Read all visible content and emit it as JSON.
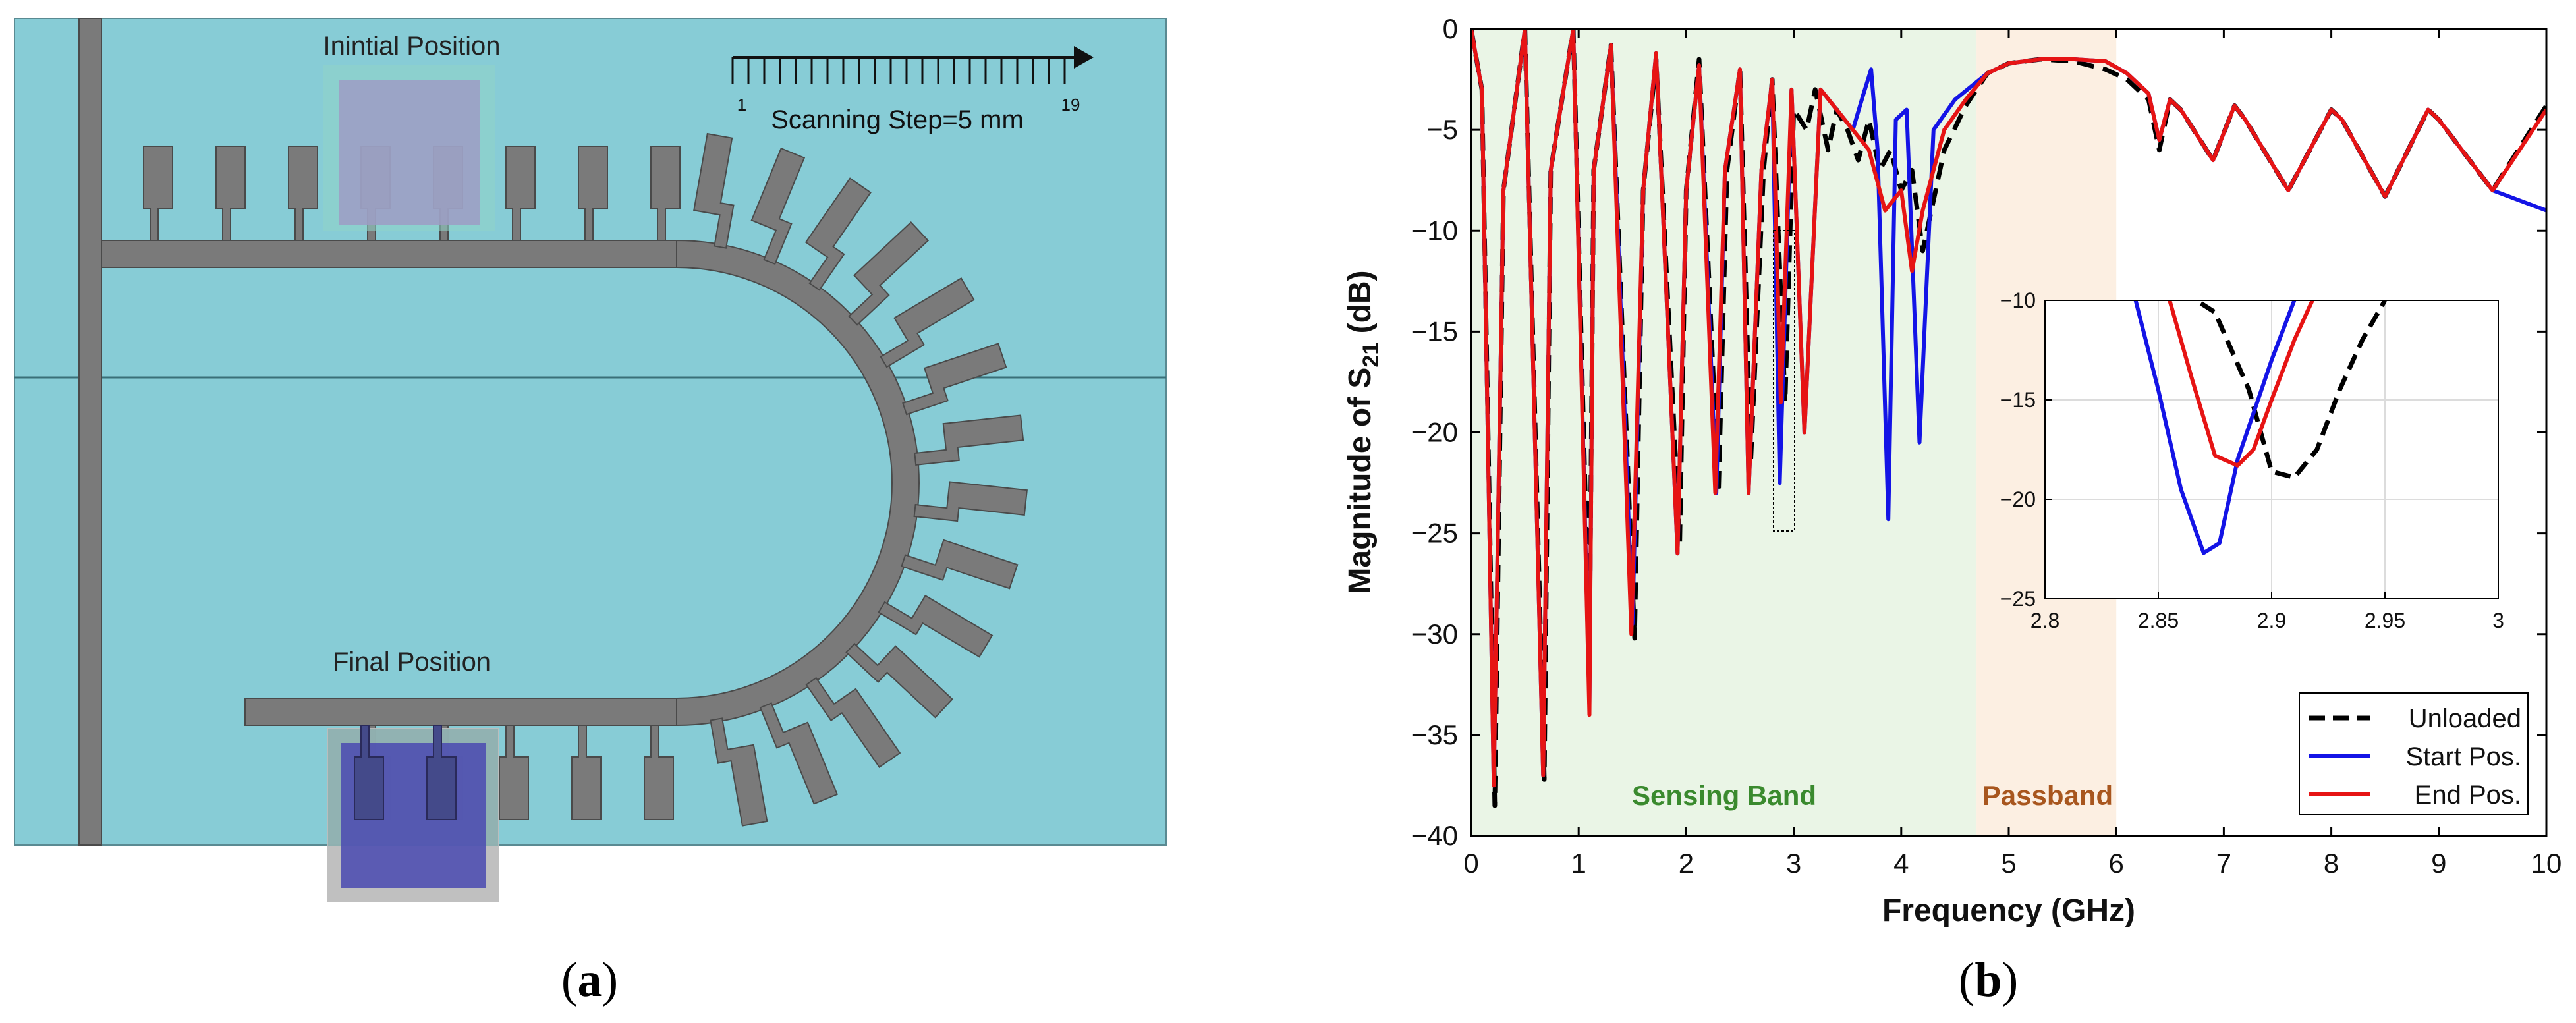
{
  "panel_a": {
    "label_open": "(",
    "label_letter": "a",
    "label_close": ")",
    "initial_label": "Inintial Position",
    "final_label": "Final Position",
    "scan_label": "Scanning Step=5 mm",
    "scan_start": "1",
    "scan_end": "19",
    "scan_steps": 19,
    "colors": {
      "background": "#87CCD6",
      "metal": "#7A7A7A",
      "initial_box": "#9E9CC4",
      "final_box": "#4C4CB0"
    }
  },
  "panel_b": {
    "label_open": "(",
    "label_letter": "b",
    "label_close": ")",
    "sensing_label": "Sensing Band",
    "passband_label": "Passband",
    "colors": {
      "sensing_band": "#EAF5E6",
      "passband": "#FCEFE2",
      "sensing_text": "#3A8A2E",
      "passband_text": "#A8561E"
    }
  },
  "chart_data": [
    {
      "type": "line",
      "xlabel": "Frequency (GHz)",
      "ylabel": "Magnitude of S21 (dB)",
      "ylabel_main": "Magnitude of S",
      "ylabel_sub": "21",
      "ylabel_unit": " (dB)",
      "xlim": [
        0,
        10
      ],
      "ylim": [
        -40,
        0
      ],
      "xticks": [
        0,
        1,
        2,
        3,
        4,
        5,
        6,
        7,
        8,
        9,
        10
      ],
      "yticks": [
        0,
        -5,
        -10,
        -15,
        -20,
        -25,
        -30,
        -35,
        -40
      ],
      "shaded_regions": [
        {
          "label": "Sensing Band",
          "x": [
            0,
            4.7
          ]
        },
        {
          "label": "Passband",
          "x": [
            4.7,
            6.0
          ]
        }
      ],
      "legend_position": "bottom-right",
      "legend": [
        "Unloaded",
        "Start Pos.",
        "End Pos."
      ],
      "series": [
        {
          "name": "Unloaded",
          "color": "#000000",
          "style": "dashed",
          "x": [
            0,
            0.1,
            0.22,
            0.3,
            0.5,
            0.68,
            0.74,
            0.95,
            1.1,
            1.14,
            1.3,
            1.52,
            1.6,
            1.72,
            1.94,
            2.0,
            2.12,
            2.3,
            2.38,
            2.5,
            2.6,
            2.72,
            2.8,
            2.92,
            3.0,
            3.12,
            3.2,
            3.32,
            3.4,
            3.5,
            3.6,
            3.7,
            3.8,
            3.9,
            4.0,
            4.1,
            4.2,
            4.4,
            4.6,
            4.8,
            5.0,
            5.3,
            5.6,
            5.9,
            6.1,
            6.3,
            6.4,
            6.5,
            6.6,
            6.9,
            7.1,
            7.2,
            7.6,
            8.0,
            8.1,
            8.5,
            8.9,
            9.0,
            9.5,
            10.0
          ],
          "values": [
            0,
            -3,
            -38.5,
            -8,
            0,
            -37.2,
            -7,
            0,
            -31,
            -7,
            -0.8,
            -30.2,
            -8,
            -1.5,
            -25.5,
            -8,
            -1.5,
            -23,
            -7,
            -2,
            -21.5,
            -7,
            -2.5,
            -18.5,
            -4,
            -5,
            -3,
            -6,
            -4,
            -5,
            -6.5,
            -4.5,
            -7,
            -6,
            -8,
            -7,
            -11,
            -6,
            -3.8,
            -2.2,
            -1.7,
            -1.5,
            -1.6,
            -2.0,
            -2.5,
            -3.5,
            -6,
            -3.5,
            -4,
            -6.5,
            -3.8,
            -4.5,
            -8,
            -4,
            -4.5,
            -8.3,
            -4,
            -4.5,
            -8,
            -3.8
          ]
        },
        {
          "name": "Start Pos.",
          "color": "#1414E6",
          "style": "solid",
          "x": [
            0,
            0.1,
            0.21,
            0.3,
            0.5,
            0.67,
            0.74,
            0.95,
            1.1,
            1.14,
            1.3,
            1.5,
            1.6,
            1.72,
            1.92,
            2.0,
            2.12,
            2.28,
            2.36,
            2.5,
            2.58,
            2.7,
            2.8,
            2.87,
            2.98,
            3.1,
            3.25,
            3.4,
            3.55,
            3.65,
            3.72,
            3.78,
            3.88,
            3.95,
            4.05,
            4.17,
            4.3,
            4.5,
            4.8,
            5.0,
            5.3,
            5.6,
            5.9,
            6.1,
            6.3,
            6.4,
            6.5,
            6.6,
            6.9,
            7.1,
            7.2,
            7.6,
            8.0,
            8.1,
            8.5,
            8.9,
            9.0,
            9.5,
            10.0
          ],
          "values": [
            0,
            -3,
            -37.5,
            -8,
            0,
            -37,
            -7,
            0,
            -33.5,
            -7,
            -0.8,
            -29.5,
            -8,
            -1.2,
            -26,
            -8,
            -1.8,
            -23,
            -7,
            -2,
            -23,
            -7,
            -2.5,
            -22.5,
            -3,
            -20,
            -3,
            -4,
            -5,
            -3.2,
            -2,
            -6,
            -24.3,
            -4.5,
            -4,
            -20.5,
            -5,
            -3.5,
            -2.2,
            -1.7,
            -1.5,
            -1.5,
            -1.6,
            -2.2,
            -3.2,
            -5.5,
            -3.5,
            -4,
            -6.5,
            -3.8,
            -4.5,
            -8,
            -4,
            -4.5,
            -8.3,
            -4,
            -4.5,
            -8,
            -9
          ]
        },
        {
          "name": "End Pos.",
          "color": "#E61414",
          "style": "solid",
          "x": [
            0,
            0.1,
            0.21,
            0.3,
            0.5,
            0.67,
            0.74,
            0.95,
            1.1,
            1.14,
            1.3,
            1.49,
            1.6,
            1.72,
            1.92,
            2.0,
            2.12,
            2.27,
            2.36,
            2.5,
            2.58,
            2.7,
            2.8,
            2.88,
            2.98,
            3.1,
            3.25,
            3.4,
            3.55,
            3.7,
            3.85,
            4.0,
            4.1,
            4.2,
            4.4,
            4.6,
            4.8,
            5.0,
            5.3,
            5.6,
            5.9,
            6.1,
            6.3,
            6.4,
            6.5,
            6.6,
            6.9,
            7.1,
            7.2,
            7.6,
            8.0,
            8.1,
            8.5,
            8.9,
            9.0,
            9.5,
            10.0
          ],
          "values": [
            0,
            -3,
            -37.5,
            -8,
            0,
            -37,
            -7,
            0,
            -34,
            -7,
            -0.8,
            -30,
            -8,
            -1.2,
            -26,
            -8,
            -1.8,
            -23,
            -7,
            -2,
            -23,
            -7,
            -2.5,
            -18.5,
            -3,
            -20,
            -3,
            -4,
            -5,
            -6,
            -9,
            -8,
            -12,
            -9,
            -5,
            -3.5,
            -2.2,
            -1.7,
            -1.5,
            -1.5,
            -1.6,
            -2.2,
            -3.2,
            -5.5,
            -3.5,
            -4,
            -6.5,
            -3.8,
            -4.5,
            -8,
            -4,
            -4.5,
            -8.3,
            -4,
            -4.5,
            -8,
            -4
          ]
        }
      ]
    },
    {
      "type": "line",
      "role": "inset",
      "xlim": [
        2.8,
        3.0
      ],
      "ylim": [
        -25,
        -10
      ],
      "xticks": [
        2.8,
        2.85,
        2.9,
        2.95,
        3.0
      ],
      "xtick_labels": [
        "2.8",
        "2.85",
        "2.9",
        "2.95",
        "3"
      ],
      "yticks": [
        -10,
        -15,
        -20,
        -25
      ],
      "grid": true,
      "series": [
        {
          "name": "Unloaded",
          "color": "#000000",
          "style": "dashed",
          "x": [
            2.86,
            2.875,
            2.89,
            2.9,
            2.91,
            2.92,
            2.93,
            2.94,
            2.95
          ],
          "values": [
            -9.5,
            -10.6,
            -14.5,
            -18.6,
            -18.9,
            -17.5,
            -14.5,
            -12,
            -10
          ]
        },
        {
          "name": "Start Pos.",
          "color": "#1414E6",
          "style": "solid",
          "x": [
            2.84,
            2.85,
            2.86,
            2.87,
            2.877,
            2.885,
            2.9,
            2.91
          ],
          "values": [
            -10,
            -14.5,
            -19.5,
            -22.7,
            -22.2,
            -18,
            -13,
            -10
          ]
        },
        {
          "name": "End Pos.",
          "color": "#E61414",
          "style": "solid",
          "x": [
            2.855,
            2.865,
            2.875,
            2.885,
            2.892,
            2.9,
            2.91,
            2.918
          ],
          "values": [
            -10,
            -14,
            -17.8,
            -18.3,
            -17.5,
            -15,
            -12,
            -10
          ]
        }
      ]
    }
  ]
}
